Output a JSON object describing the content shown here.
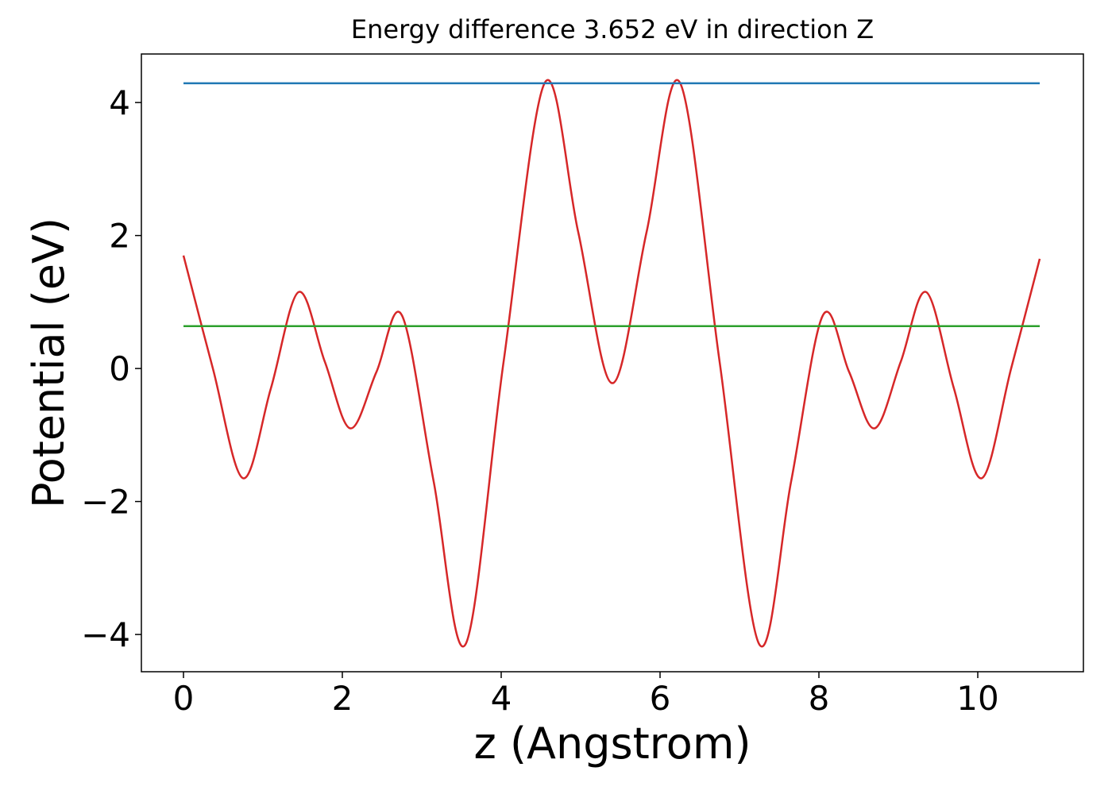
{
  "chart_data": {
    "type": "line",
    "title": "Energy difference 3.652 eV in direction Z",
    "xlabel": "z (Angstrom)",
    "ylabel": "Potential (eV)",
    "xlim": [
      -0.53,
      11.33
    ],
    "ylim": [
      -4.56,
      4.73
    ],
    "xticks": [
      0,
      2,
      4,
      6,
      8,
      10
    ],
    "yticks": [
      {
        "value": -4,
        "label": "−4"
      },
      {
        "value": -2,
        "label": "−2"
      },
      0,
      2,
      4
    ],
    "grid": false,
    "series": [
      {
        "color": "#d62728",
        "x": [
          0,
          0.37,
          0.75,
          1.1,
          1.45,
          1.78,
          2.1,
          2.43,
          2.75,
          3.15,
          3.55,
          4.03,
          4.55,
          4.97,
          5.4,
          5.83,
          6.25,
          6.75,
          7.25,
          7.65,
          8.05,
          8.38,
          8.7,
          9.03,
          9.35,
          9.7,
          10.05,
          10.42,
          10.78
        ],
        "values": [
          1.7,
          0.0,
          -1.65,
          -0.3,
          1.15,
          0.1,
          -0.9,
          -0.05,
          0.8,
          -1.7,
          -4.15,
          0.1,
          4.3,
          2.05,
          -0.22,
          2.05,
          4.3,
          0.1,
          -4.15,
          -1.7,
          0.8,
          -0.05,
          -0.9,
          0.1,
          1.15,
          -0.3,
          -1.65,
          0.0,
          1.65
        ]
      },
      {
        "color": "#1f77b4",
        "x": [
          0,
          10.78
        ],
        "values": [
          4.29,
          4.29
        ]
      },
      {
        "color": "#2ca02c",
        "x": [
          0,
          10.78
        ],
        "values": [
          0.638,
          0.638
        ]
      }
    ]
  }
}
